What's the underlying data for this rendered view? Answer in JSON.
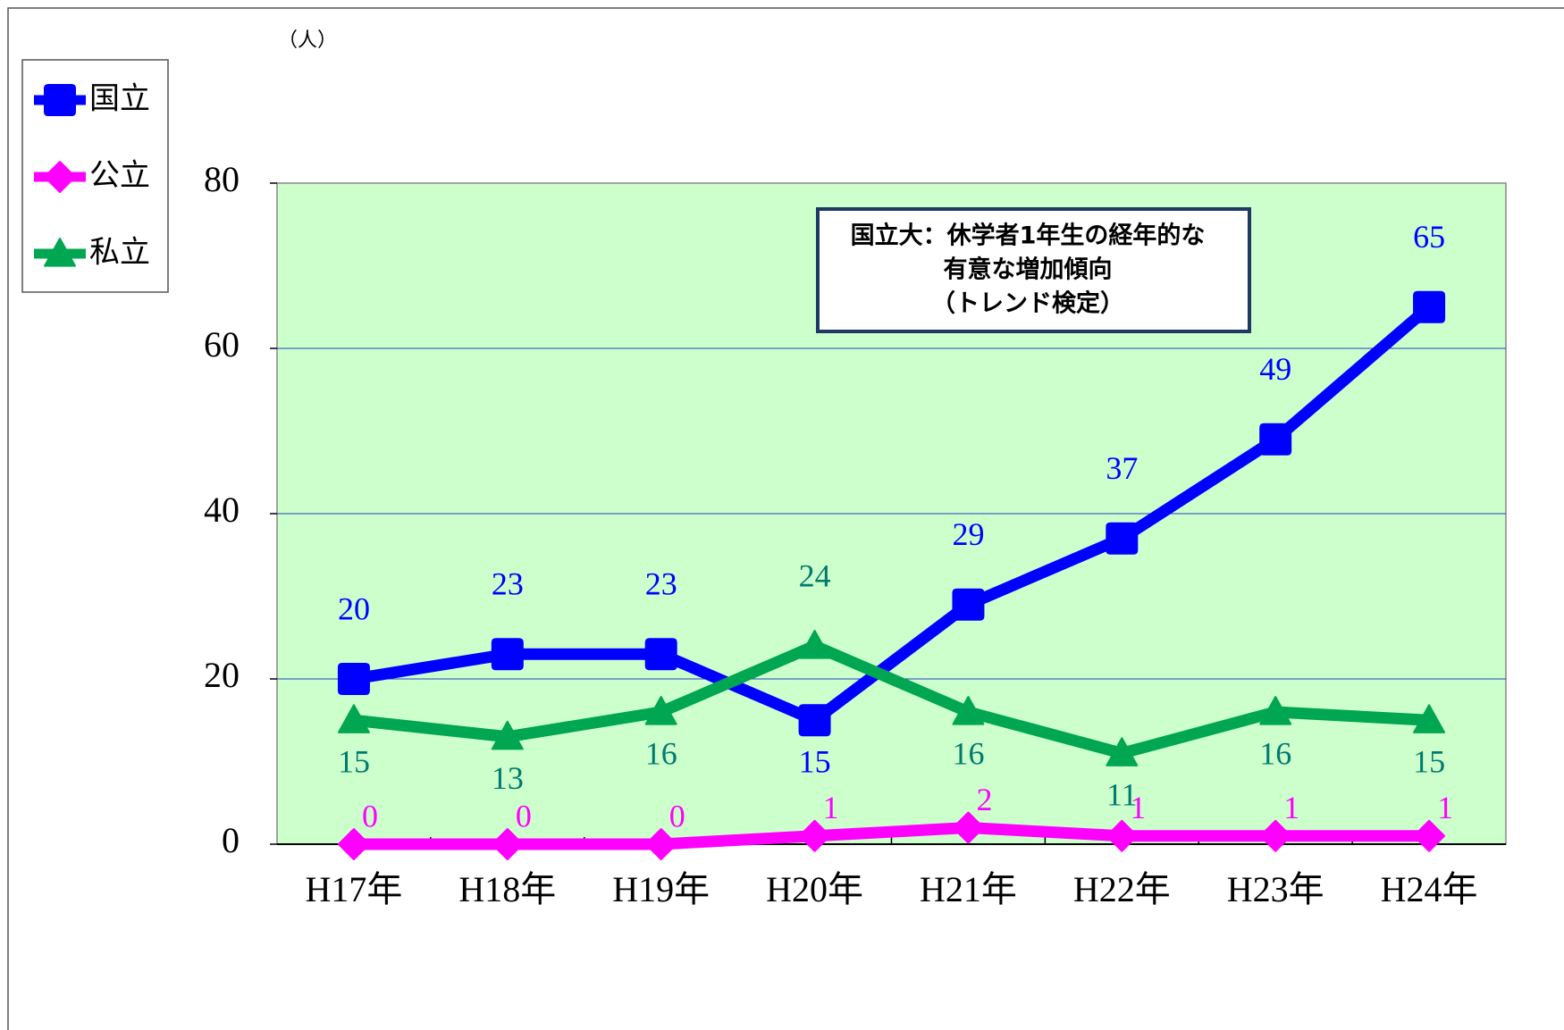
{
  "chart_data": {
    "type": "line",
    "y_unit_label": "（人）",
    "annotation": [
      "国立大：休学者1年生の経年的な",
      "有意な増加傾向",
      "（トレンド検定）"
    ],
    "categories": [
      "H17年",
      "H18年",
      "H19年",
      "H20年",
      "H21年",
      "H22年",
      "H23年",
      "H24年"
    ],
    "series": [
      {
        "name": "国立",
        "color": "#0000ff",
        "label_color": "#0000ff",
        "marker": "square",
        "values": [
          20,
          23,
          23,
          15,
          29,
          37,
          49,
          65
        ]
      },
      {
        "name": "公立",
        "color": "#ff00ff",
        "label_color": "#ff00ff",
        "marker": "diamond",
        "values": [
          0,
          0,
          0,
          1,
          2,
          1,
          1,
          1
        ]
      },
      {
        "name": "私立",
        "color": "#00a651",
        "label_color": "#007a6e",
        "marker": "triangle",
        "values": [
          15,
          13,
          16,
          24,
          16,
          11,
          16,
          15
        ]
      }
    ],
    "ylim": [
      0,
      80
    ],
    "yticks": [
      0,
      20,
      40,
      60,
      80
    ],
    "grid": true,
    "legend": "left",
    "plot_background": "#ccffcc"
  }
}
